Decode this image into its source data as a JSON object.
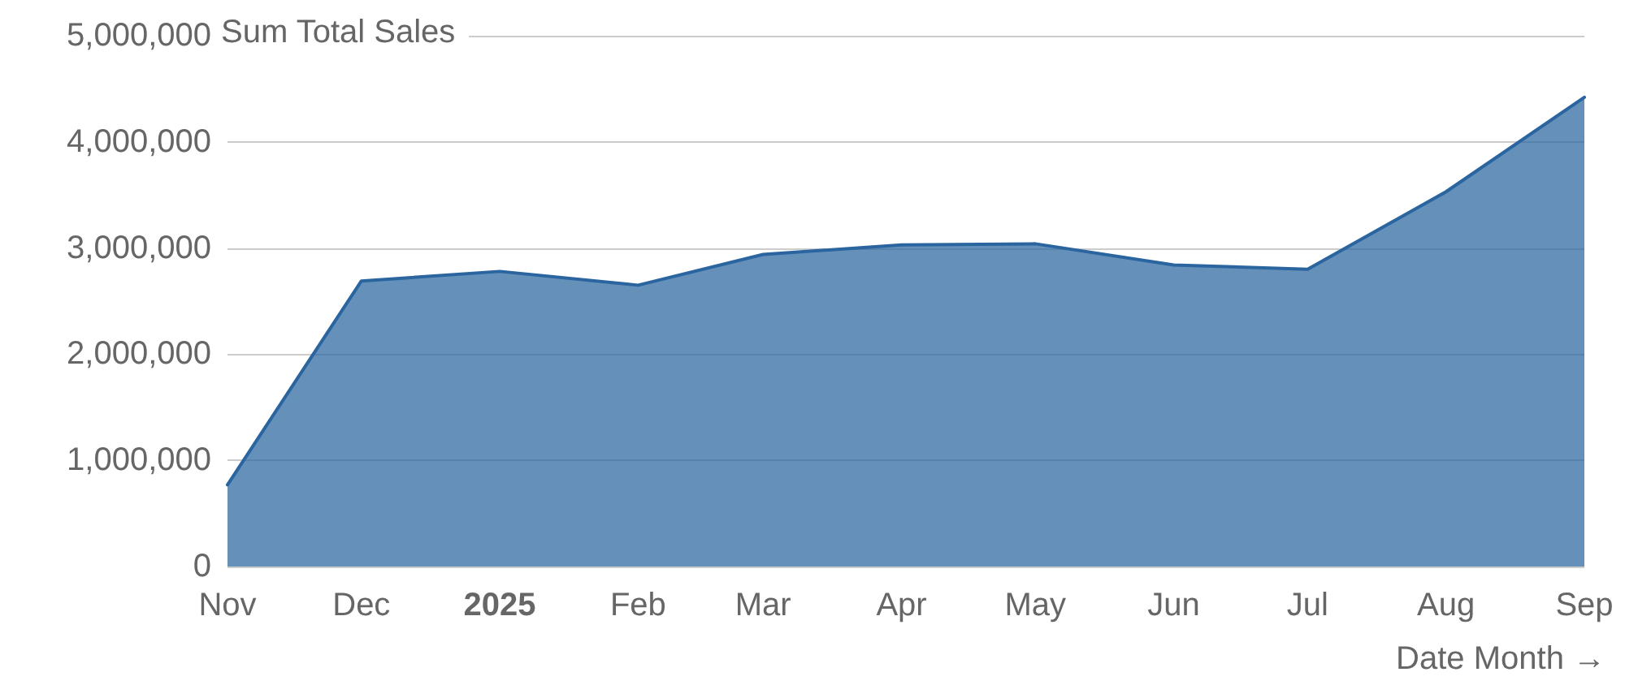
{
  "chart_data": {
    "type": "area",
    "ylabel": "Sum Total Sales",
    "xlabel": "Date Month →",
    "x": [
      "2024-11",
      "2024-12",
      "2025-01",
      "2025-02",
      "2025-03",
      "2025-04",
      "2025-05",
      "2025-06",
      "2025-07",
      "2025-08",
      "2025-09"
    ],
    "series": [
      {
        "color": "#2a65a0",
        "values": [
          770000,
          2690000,
          2780000,
          2650000,
          2940000,
          3030000,
          3040000,
          2840000,
          2800000,
          3530000,
          4420000
        ]
      }
    ],
    "xlim": [
      "2024-11",
      "2025-09"
    ],
    "xticks": [
      {
        "value": "2024-11",
        "label": "Nov"
      },
      {
        "value": "2024-12",
        "label": "Dec"
      },
      {
        "value": "2025-01",
        "label": "2025"
      },
      {
        "value": "2025-02",
        "label": "Feb"
      },
      {
        "value": "2025-03",
        "label": "Mar"
      },
      {
        "value": "2025-04",
        "label": "Apr"
      },
      {
        "value": "2025-05",
        "label": "May"
      },
      {
        "value": "2025-06",
        "label": "Jun"
      },
      {
        "value": "2025-07",
        "label": "Jul"
      },
      {
        "value": "2025-08",
        "label": "Aug"
      },
      {
        "value": "2025-09",
        "label": "Sep"
      }
    ],
    "ylim": [
      0,
      5000000
    ],
    "yticks": [
      0,
      {
        "value": 1000000,
        "label": "1,000,000"
      },
      {
        "value": 2000000,
        "label": "2,000,000"
      },
      {
        "value": 3000000,
        "label": "3,000,000"
      },
      {
        "value": 4000000,
        "label": "4,000,000"
      },
      {
        "value": 5000000,
        "label": "5,000,000"
      }
    ],
    "grid": "y",
    "marker": "none",
    "line_style": "solid"
  }
}
